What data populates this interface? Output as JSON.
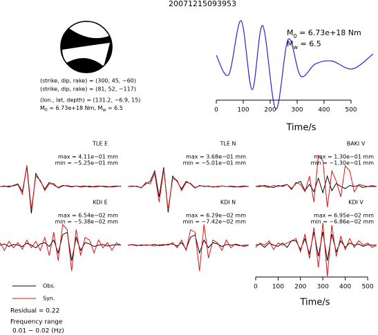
{
  "title": "20071215093953",
  "source_info": {
    "lines": [
      "(strike, dip, rake) = (300, 45, −60)",
      "(strike, dip, rake) = (81, 52, −117)",
      "(lon., lat, depth) = (131.2, −6.9, 15)"
    ],
    "moment_parts": [
      "M",
      "0",
      " = 6.73e+18 Nm, M",
      "w",
      " = 6.5"
    ]
  },
  "chart_data": [
    {
      "type": "line",
      "x": [
        0,
        46,
        92,
        133,
        172,
        221,
        267,
        313,
        367,
        428,
        505,
        582
      ],
      "values": [
        0.22,
        -0.22,
        1.0,
        -0.56,
        0.89,
        -1.0,
        0.58,
        -0.25,
        0.02,
        0.09,
        -0.09,
        0.25
      ],
      "color": "#2222dd",
      "xlim": [
        0,
        595
      ],
      "ylim": [
        -1,
        1
      ],
      "xticks": [
        0,
        100,
        200,
        300,
        400,
        500
      ],
      "xlabel": "Time/s",
      "annotation_m0": [
        "M",
        "0",
        " = 6.73e+18 Nm"
      ],
      "annotation_mw": [
        "M",
        "w",
        " = 6.5"
      ]
    },
    {
      "type": "waveforms",
      "t": [
        0,
        20,
        40,
        60,
        80,
        100,
        120,
        140,
        160,
        180,
        200,
        220,
        240,
        260,
        280,
        300,
        320,
        340,
        360,
        380,
        400,
        420,
        440,
        460,
        480,
        500,
        520,
        540
      ],
      "xlim": [
        0,
        540
      ],
      "xticks": [
        0,
        100,
        200,
        300,
        400,
        500
      ],
      "xlabel": "Time/s",
      "series": [
        {
          "name": "Obs.",
          "color": "#000000"
        },
        {
          "name": "Syn.",
          "color": "#e01010"
        }
      ],
      "residual": "Residual = 0.22",
      "freq_title": "Frequency range",
      "freq_range": "0.01 − 0.02 (Hz)",
      "panels": [
        {
          "name": "TLE E",
          "max": "max = 4.11e−01 mm",
          "min": "min = −5.25e−01 mm",
          "ylim": [
            -0.6,
            0.6
          ],
          "obs": [
            0,
            0.01,
            -0.01,
            0.02,
            0.05,
            -0.1,
            0.38,
            -0.52,
            0.25,
            0.1,
            -0.05,
            0.08,
            0.03,
            -0.02,
            0.02,
            0.01,
            -0.01,
            0.01,
            0,
            0.01,
            -0.01,
            0,
            0.01,
            0,
            -0.01,
            0,
            0.01,
            0
          ],
          "syn": [
            0,
            0,
            0.01,
            0.01,
            0.04,
            -0.15,
            0.41,
            -0.45,
            0.2,
            0.12,
            -0.08,
            0.05,
            0.06,
            -0.03,
            0.01,
            0.02,
            0,
            0.01,
            -0.01,
            0,
            0.01,
            -0.01,
            0,
            0.01,
            0,
            -0.01,
            0,
            0.01
          ]
        },
        {
          "name": "TLE N",
          "max": "max = 3.68e−01 mm",
          "min": "min = −5.01e−01 mm",
          "ylim": [
            -0.6,
            0.6
          ],
          "obs": [
            0,
            0.01,
            0,
            -0.02,
            0.05,
            0.1,
            0.3,
            -0.2,
            0.37,
            -0.5,
            0.2,
            0.1,
            -0.05,
            0.1,
            0.05,
            -0.03,
            0.02,
            0,
            0.01,
            -0.01,
            0,
            0.01,
            0,
            0,
            -0.01,
            0,
            0.01,
            0
          ],
          "syn": [
            0,
            0,
            0.01,
            -0.03,
            0.08,
            0.05,
            0.25,
            -0.3,
            0.33,
            -0.45,
            0.15,
            0.12,
            -0.08,
            0.08,
            0.06,
            -0.02,
            0.01,
            0.01,
            0,
            0,
            -0.01,
            0.01,
            0,
            0.01,
            0,
            -0.01,
            0,
            0
          ]
        },
        {
          "name": "BAKI V",
          "max": "max = 1.30e−01 mm",
          "min": "min = −1.30e−01 mm",
          "ylim": [
            -0.3,
            0.3
          ],
          "obs": [
            0,
            0,
            0.01,
            0,
            -0.01,
            0.01,
            0,
            0.02,
            -0.02,
            0.03,
            0.05,
            -0.04,
            0.02,
            -0.05,
            0.08,
            -0.06,
            0.1,
            -0.04,
            0.03,
            0,
            -0.02,
            0.01,
            0,
            0.01,
            -0.01,
            0,
            0,
            0
          ],
          "syn": [
            0,
            0.01,
            0,
            -0.01,
            0.01,
            0,
            0.01,
            0.02,
            -0.03,
            0.04,
            0.02,
            -0.05,
            0.1,
            -0.15,
            0.3,
            0.25,
            -0.2,
            0.15,
            0.05,
            -0.1,
            0.2,
            0.15,
            -0.05,
            0.02,
            0.01,
            0,
            0.01,
            0
          ]
        },
        {
          "name": "KDI E",
          "max": "max = 6.54e−02 mm",
          "min": "min = −5.38e−02 mm",
          "ylim": [
            -0.12,
            0.12
          ],
          "obs": [
            0,
            0.005,
            -0.005,
            0.003,
            0,
            -0.005,
            0.008,
            0,
            -0.01,
            0.005,
            0.01,
            -0.005,
            0.02,
            -0.03,
            0.04,
            0.05,
            -0.06,
            0.03,
            -0.02,
            0.01,
            0.005,
            -0.005,
            0,
            0.003,
            -0.003,
            0,
            0.002,
            0
          ],
          "syn": [
            0.01,
            -0.02,
            0.015,
            -0.01,
            0.01,
            -0.015,
            0.02,
            -0.01,
            0.015,
            -0.02,
            0.03,
            -0.04,
            0.05,
            -0.06,
            0.08,
            0.06,
            -0.1,
            0.06,
            -0.04,
            0.03,
            0.02,
            -0.03,
            0.02,
            -0.01,
            0.01,
            -0.02,
            0.01,
            0
          ]
        },
        {
          "name": "KDI N",
          "max": "max = 6.29e−02 mm",
          "min": "min = −7.42e−02 mm",
          "ylim": [
            -0.12,
            0.12
          ],
          "obs": [
            0,
            0.002,
            -0.002,
            0.001,
            0,
            0,
            0.003,
            -0.002,
            0,
            0.004,
            0.005,
            -0.003,
            0.01,
            -0.015,
            0.03,
            0.04,
            -0.03,
            0.02,
            -0.01,
            0.01,
            0.005,
            -0.005,
            0.003,
            0,
            0.002,
            -0.002,
            0,
            0
          ],
          "syn": [
            0,
            0.003,
            0,
            -0.002,
            0.002,
            0,
            -0.003,
            0.002,
            0.003,
            0,
            0.01,
            -0.01,
            0.02,
            -0.02,
            0.06,
            0.05,
            -0.1,
            0.08,
            -0.05,
            0.02,
            0.01,
            -0.02,
            0.02,
            -0.01,
            0.005,
            0,
            -0.005,
            0
          ]
        },
        {
          "name": "KDI V",
          "max": "max = 6.95e−02 mm",
          "min": "min = −6.86e−02 mm",
          "ylim": [
            -0.14,
            0.14
          ],
          "obs": [
            0,
            0.005,
            -0.01,
            0.01,
            0,
            -0.005,
            0.01,
            -0.01,
            0.02,
            0.02,
            -0.02,
            0.03,
            -0.04,
            0.06,
            -0.05,
            0.06,
            -0.07,
            0.05,
            -0.03,
            0.02,
            -0.01,
            0.01,
            0,
            0.005,
            -0.005,
            0.002,
            0,
            0
          ],
          "syn": [
            -0.01,
            0.01,
            0,
            0.02,
            -0.02,
            0.01,
            0,
            0.01,
            0.02,
            0.03,
            -0.03,
            0.05,
            -0.06,
            0.08,
            -0.1,
            0.1,
            -0.14,
            0.09,
            -0.05,
            0.04,
            -0.02,
            0.03,
            -0.01,
            0.02,
            0,
            0.01,
            -0.01,
            0
          ]
        }
      ]
    }
  ]
}
